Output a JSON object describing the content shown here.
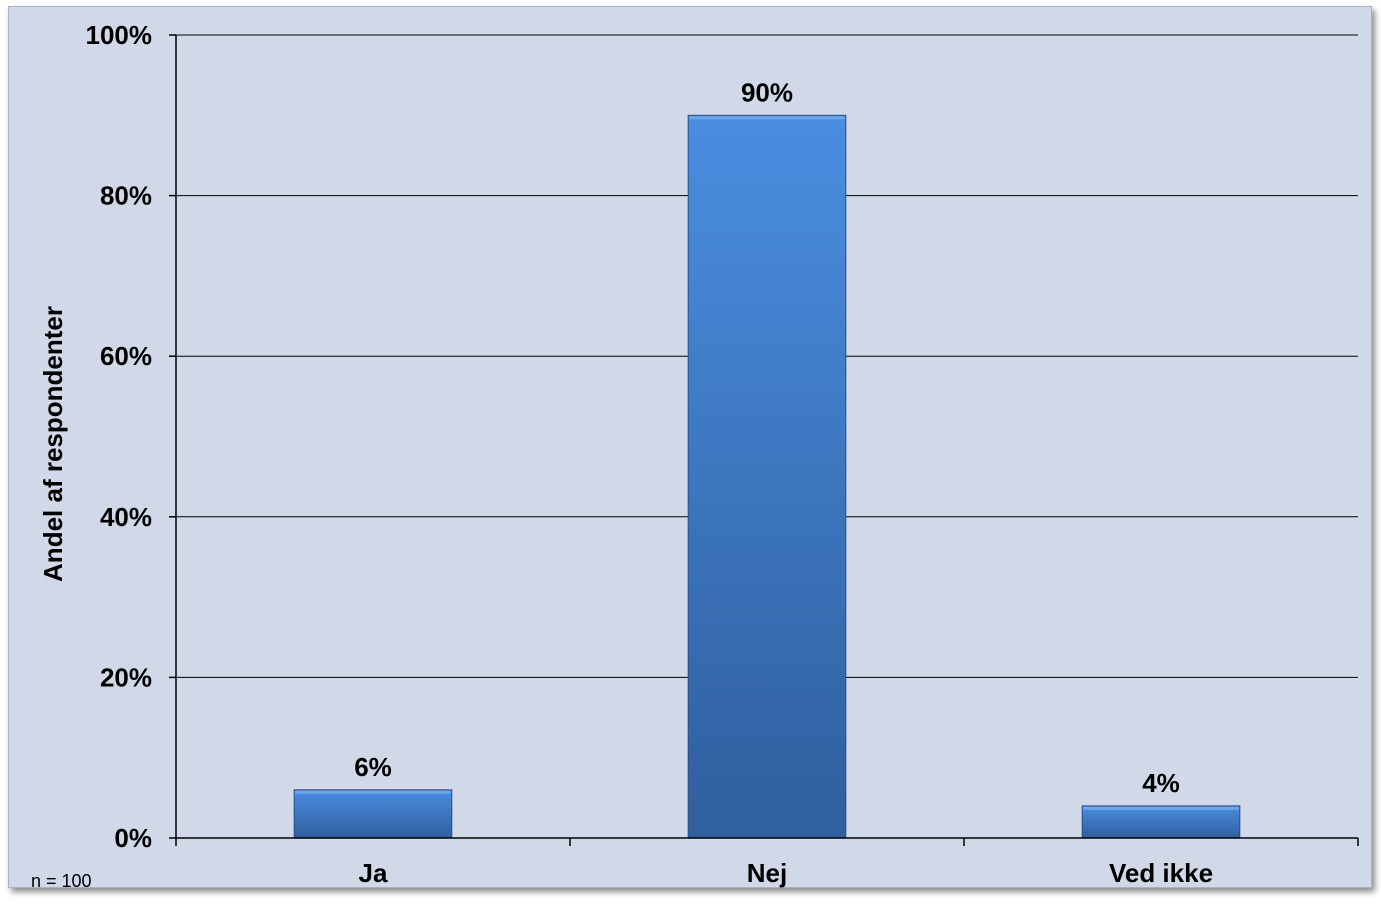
{
  "chart_data": {
    "type": "bar",
    "categories": [
      "Ja",
      "Nej",
      "Ved ikke"
    ],
    "values": [
      6,
      90,
      4
    ],
    "data_labels": [
      "6%",
      "90%",
      "4%"
    ],
    "title": "",
    "xlabel": "",
    "ylabel": "Andel af respondenter",
    "ylim": [
      0,
      100
    ],
    "yticks": [
      0,
      20,
      40,
      60,
      80,
      100
    ],
    "ytick_labels": [
      "0%",
      "20%",
      "40%",
      "60%",
      "80%",
      "100%"
    ],
    "grid": true,
    "legend": "none",
    "note": "n = 100",
    "colors": {
      "background": "#d1d8e8",
      "bar_top": "#4a8ee0",
      "bar_bottom": "#2f5f9e",
      "grid": "#000000"
    }
  }
}
